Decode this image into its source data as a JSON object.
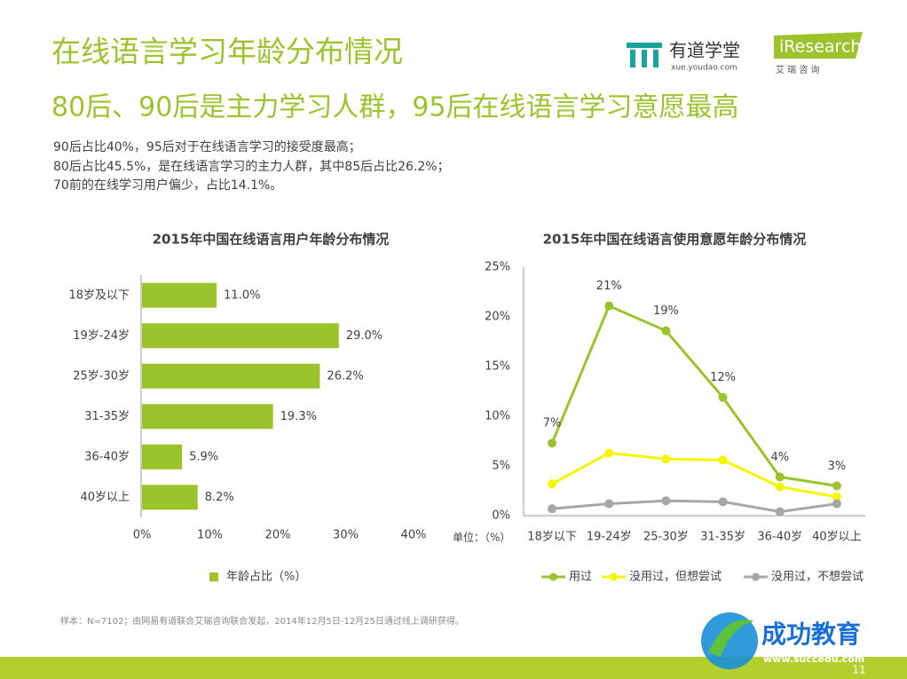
{
  "title": "在线语言学习年龄分布情况",
  "subtitle": "80后、90后是主力学习人群，95后在线语言学习意愿最高",
  "bullets": [
    "90后占比40%，95后对于在线语言学习的接受度最高；",
    "80后占比45.5%，是在线语言学习的主力人群，其中85后占比26.2%；",
    "70前的在线学习用户偏少，占比14.1%。"
  ],
  "logos": {
    "youdao": "有道学堂",
    "youdao_url": "xue.youdao.com",
    "iresearch": "iResearch",
    "iresearch_cn": "艾 瑞 咨 询",
    "succedu": "成功教育",
    "succedu_url": "www.succedu.com"
  },
  "source": "样本：N=7102；由网易有道联合艾瑞咨询联合发起，2014年12月5日-12月25日通过线上调研获得。",
  "page_number": "11",
  "chart_data": [
    {
      "type": "barh",
      "title": "2015年中国在线语言用户年龄分布情况",
      "categories": [
        "18岁及以下",
        "19岁-24岁",
        "25岁-30岁",
        "31-35岁",
        "36-40岁",
        "40岁以上"
      ],
      "series": [
        {
          "name": "年龄占比（%）",
          "color": "#9dc32c",
          "values": [
            11.0,
            29.0,
            26.2,
            19.3,
            5.9,
            8.2
          ],
          "value_labels": [
            "11.0%",
            "29.0%",
            "26.2%",
            "19.3%",
            "5.9%",
            "8.2%"
          ]
        }
      ],
      "xlim": [
        0,
        40
      ],
      "xticks": [
        {
          "value": 0,
          "label": "0%"
        },
        {
          "value": 10,
          "label": "10%"
        },
        {
          "value": 20,
          "label": "20%"
        },
        {
          "value": 30,
          "label": "30%"
        },
        {
          "value": 40,
          "label": "40%"
        }
      ],
      "grid": false
    },
    {
      "type": "line",
      "title": "2015年中国在线语言使用意愿年龄分布情况",
      "unit_label": "单位：（%）",
      "categories": [
        "18岁以下",
        "19-24岁",
        "25-30岁",
        "31-35岁",
        "36-40岁",
        "40岁以上"
      ],
      "series": [
        {
          "name": "用过",
          "color": "#9dc32c",
          "values": [
            7.3,
            21.1,
            18.6,
            11.9,
            3.9,
            3.0
          ],
          "value_labels": [
            "7%",
            "21%",
            "19%",
            "12%",
            "4%",
            "3%"
          ]
        },
        {
          "name": "没用过，但想尝试",
          "color": "#f5f500",
          "values": [
            3.2,
            6.3,
            5.7,
            5.6,
            2.9,
            1.9
          ]
        },
        {
          "name": "没用过，不想尝试",
          "color": "#a6a6a6",
          "values": [
            0.7,
            1.2,
            1.5,
            1.4,
            0.4,
            1.2
          ]
        }
      ],
      "ylim": [
        0,
        25
      ],
      "yticks": [
        {
          "value": 0,
          "label": "0%"
        },
        {
          "value": 5,
          "label": "5%"
        },
        {
          "value": 10,
          "label": "10%"
        },
        {
          "value": 15,
          "label": "15%"
        },
        {
          "value": 20,
          "label": "20%"
        },
        {
          "value": 25,
          "label": "25%"
        }
      ],
      "grid": false
    }
  ]
}
